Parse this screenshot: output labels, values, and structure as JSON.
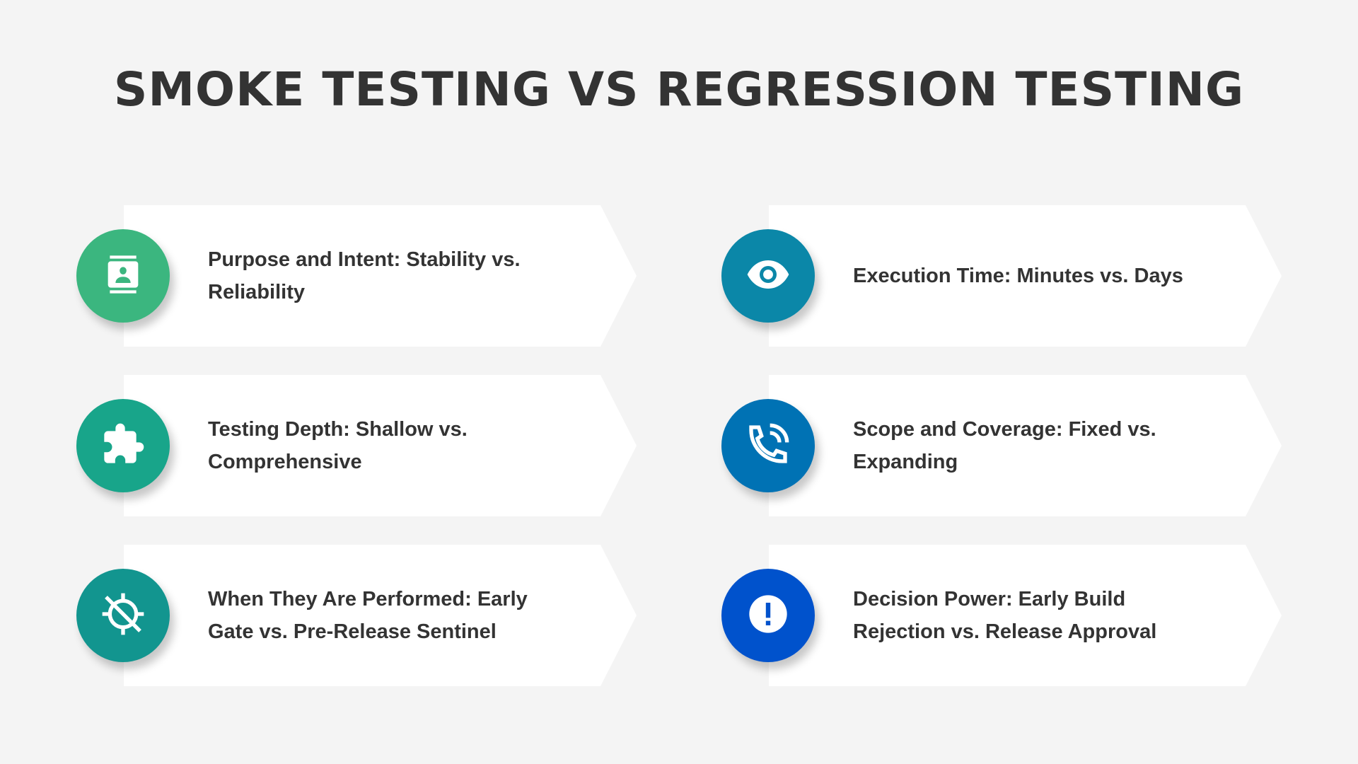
{
  "title": "SMOKE TESTING VS REGRESSION TESTING",
  "items": [
    {
      "label": "Purpose and Intent: Stability vs. Reliability",
      "icon": "contact-card-icon",
      "color": "#3bb67f"
    },
    {
      "label": "Execution Time: Minutes vs. Days",
      "icon": "eye-icon",
      "color": "#0b87a8"
    },
    {
      "label": "Testing Depth: Shallow vs. Comprehensive",
      "icon": "puzzle-icon",
      "color": "#18a58a"
    },
    {
      "label": "Scope and Coverage: Fixed vs. Expanding",
      "icon": "phone-in-talk-icon",
      "color": "#0072b4"
    },
    {
      "label": "When They Are Performed: Early Gate vs. Pre-Release Sentinel",
      "icon": "gps-off-icon",
      "color": "#12958f"
    },
    {
      "label": "Decision Power: Early Build Rejection vs. Release Approval",
      "icon": "alert-circle-icon",
      "color": "#0052cc"
    }
  ]
}
